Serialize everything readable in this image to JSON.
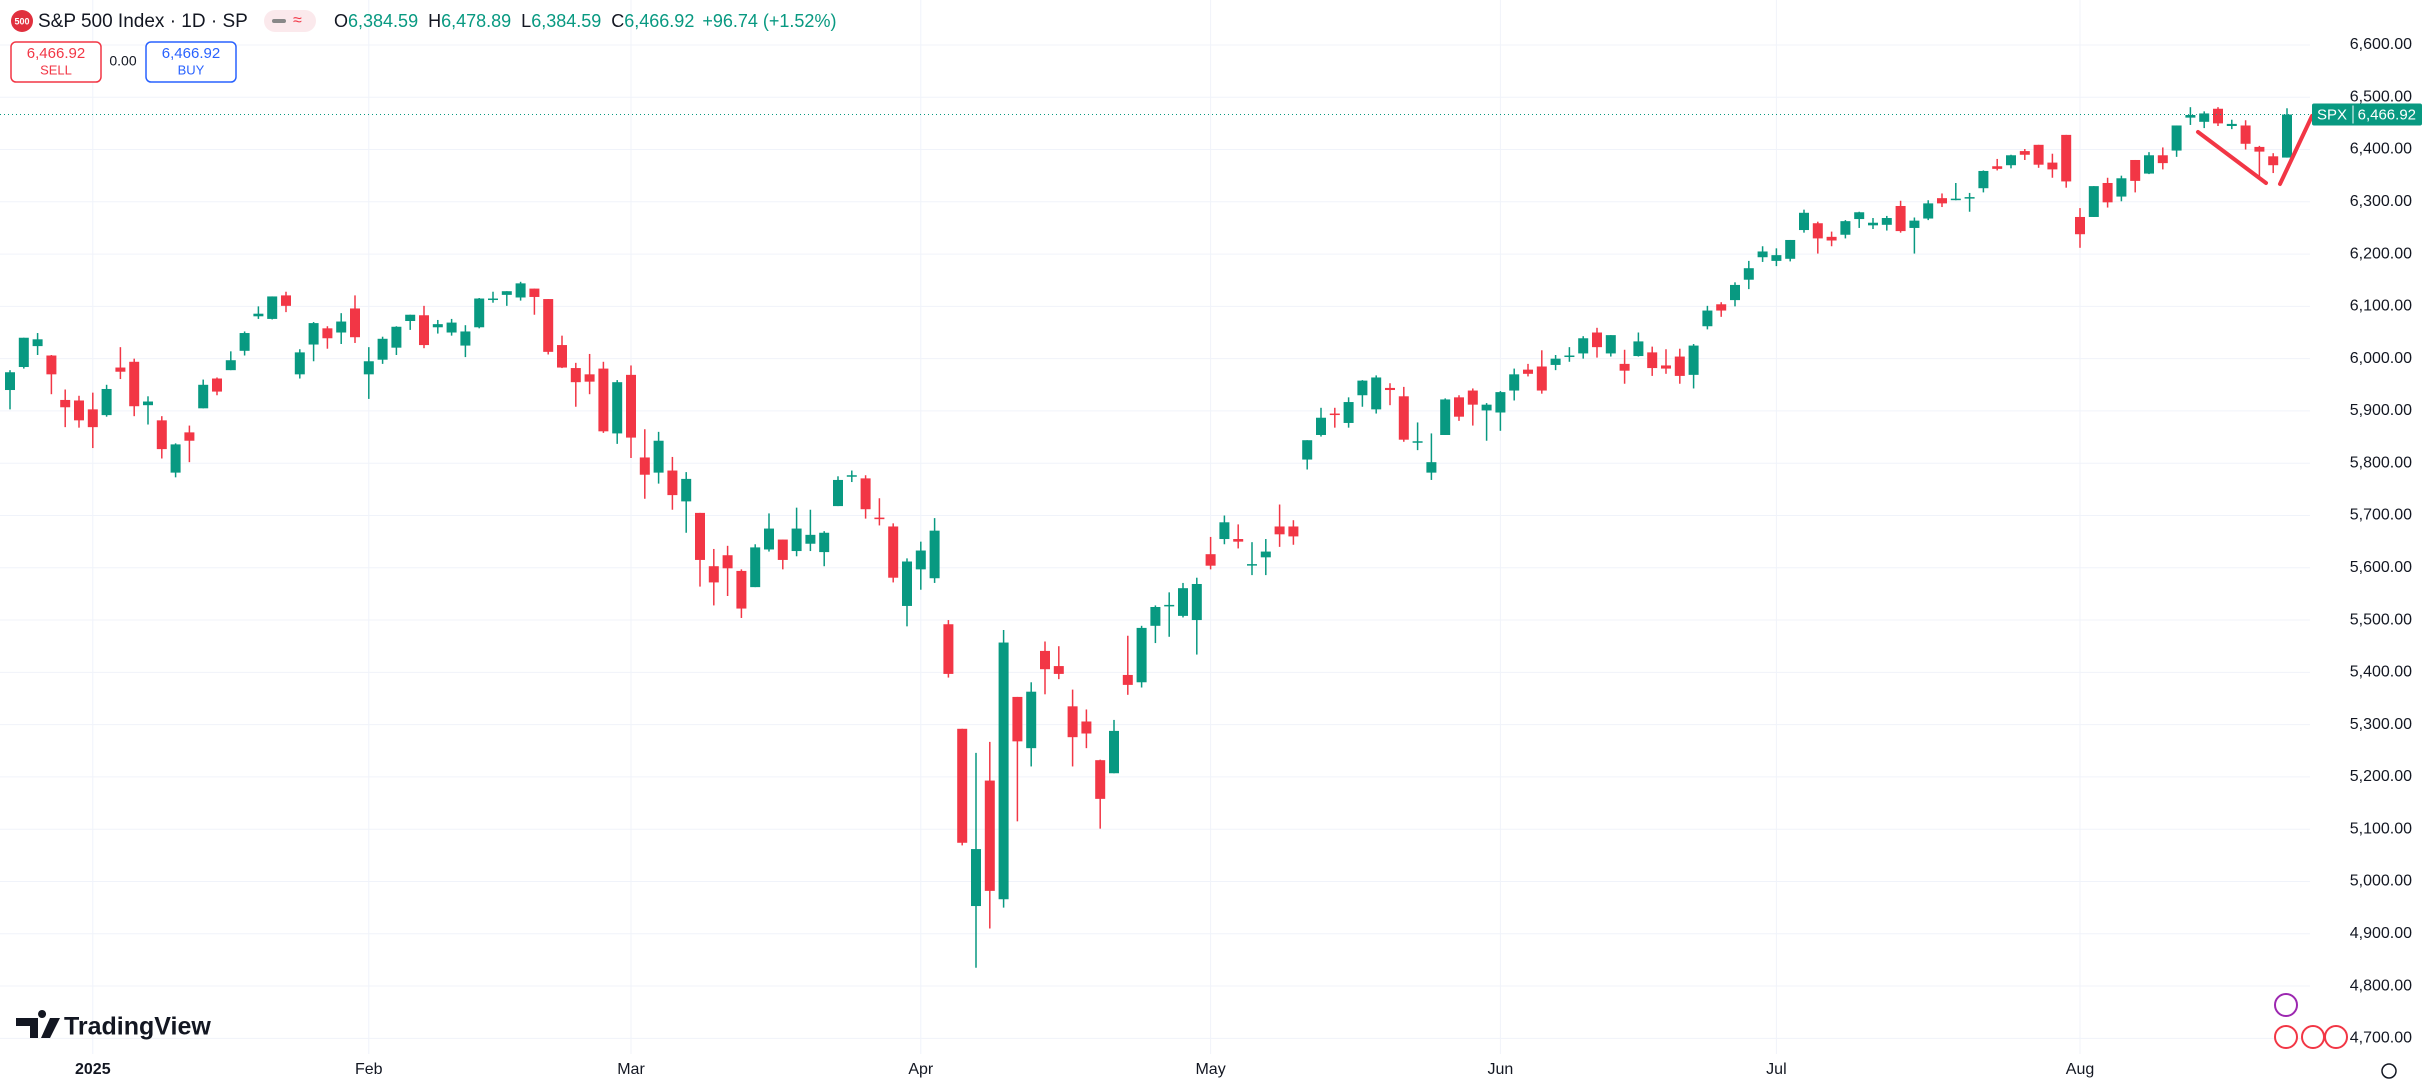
{
  "toolbar": {
    "badge": "500",
    "title": "S&P 500 Index · 1D · SP",
    "ohlc": [
      [
        "O",
        "6,384.59"
      ],
      [
        "H",
        "6,478.89"
      ],
      [
        "L",
        "6,384.59"
      ],
      [
        "C",
        "6,466.92"
      ]
    ],
    "change": "+96.74 (+1.52%)",
    "sell_price": "6,466.92",
    "sell_label": "SELL",
    "spread": "0.00",
    "buy_price": "6,466.92",
    "buy_label": "BUY"
  },
  "logo": "TradingView",
  "chart_data": {
    "type": "candlestick",
    "symbol": "SPX",
    "last_label": "6,466.92",
    "up_color": "#089981",
    "down_color": "#f23645",
    "grid": true,
    "ylim": [
      4670,
      6686
    ],
    "yticks": [
      {
        "value": 4700,
        "label": "4,700.00"
      },
      {
        "value": 4800,
        "label": "4,800.00"
      },
      {
        "value": 4900,
        "label": "4,900.00"
      },
      {
        "value": 5000,
        "label": "5,000.00"
      },
      {
        "value": 5100,
        "label": "5,100.00"
      },
      {
        "value": 5200,
        "label": "5,200.00"
      },
      {
        "value": 5300,
        "label": "5,300.00"
      },
      {
        "value": 5400,
        "label": "5,400.00"
      },
      {
        "value": 5500,
        "label": "5,500.00"
      },
      {
        "value": 5600,
        "label": "5,600.00"
      },
      {
        "value": 5700,
        "label": "5,700.00"
      },
      {
        "value": 5800,
        "label": "5,800.00"
      },
      {
        "value": 5900,
        "label": "5,900.00"
      },
      {
        "value": 6000,
        "label": "6,000.00"
      },
      {
        "value": 6100,
        "label": "6,100.00"
      },
      {
        "value": 6200,
        "label": "6,200.00"
      },
      {
        "value": 6300,
        "label": "6,300.00"
      },
      {
        "value": 6400,
        "label": "6,400.00"
      },
      {
        "value": 6500,
        "label": "6,500.00"
      },
      {
        "value": 6600,
        "label": "6,600.00"
      }
    ],
    "categories": [
      null,
      null,
      null,
      null,
      null,
      null,
      "2025",
      null,
      null,
      null,
      null,
      null,
      null,
      null,
      null,
      null,
      null,
      null,
      null,
      null,
      null,
      null,
      null,
      null,
      null,
      null,
      "Feb",
      null,
      null,
      null,
      null,
      null,
      null,
      null,
      null,
      null,
      null,
      null,
      null,
      null,
      null,
      null,
      null,
      null,
      null,
      "Mar",
      null,
      null,
      null,
      null,
      null,
      null,
      null,
      null,
      null,
      null,
      null,
      null,
      null,
      null,
      null,
      null,
      null,
      null,
      null,
      null,
      "Apr",
      null,
      null,
      null,
      null,
      null,
      null,
      null,
      null,
      null,
      null,
      null,
      null,
      null,
      null,
      null,
      null,
      null,
      null,
      null,
      null,
      "May",
      null,
      null,
      null,
      null,
      null,
      null,
      null,
      null,
      null,
      null,
      null,
      null,
      null,
      null,
      null,
      null,
      null,
      null,
      null,
      null,
      "Jun",
      null,
      null,
      null,
      null,
      null,
      null,
      null,
      null,
      null,
      null,
      null,
      null,
      null,
      null,
      null,
      null,
      null,
      null,
      null,
      "Jul",
      null,
      null,
      null,
      null,
      null,
      null,
      null,
      null,
      null,
      null,
      null,
      null,
      null,
      null,
      null,
      null,
      null,
      null,
      null,
      null,
      null,
      "Aug",
      null,
      null,
      null,
      null,
      null,
      null,
      null,
      null,
      null,
      null,
      null,
      null,
      null,
      null,
      null
    ],
    "open": [
      5940,
      5984,
      6024,
      6006,
      5921,
      5920,
      5903,
      5892,
      5983,
      5994,
      5911,
      5882,
      5782,
      5859,
      5905,
      5962,
      5978,
      6015,
      6081,
      6076,
      6121,
      5970,
      6027,
      6058,
      6050,
      6096,
      5970,
      5998,
      6021,
      6072,
      6083,
      6060,
      6050,
      6025,
      6060,
      6115,
      6122,
      6117,
      6134,
      6114,
      6026,
      5982,
      5970,
      5981,
      5857,
      5969,
      5811,
      5782,
      5786,
      5727,
      5705,
      5603,
      5624,
      5594,
      5563,
      5635,
      5654,
      5632,
      5646,
      5630,
      5718,
      5775,
      5771,
      5696,
      5679,
      5527,
      5597,
      5580,
      5492,
      5292,
      4953,
      5193,
      4966,
      5353,
      5255,
      5441,
      5412,
      5335,
      5306,
      5232,
      5207,
      5395,
      5381,
      5489,
      5529,
      5508,
      5500,
      5626,
      5655,
      5655,
      5606,
      5620,
      5679,
      5679,
      5807,
      5854,
      5895,
      5877,
      5930,
      5903,
      5944,
      5928,
      5841,
      5782,
      5854,
      5926,
      5939,
      5901,
      5897,
      5939,
      5979,
      5985,
      5988,
      6004,
      6010,
      6050,
      6010,
      5990,
      6005,
      6012,
      5987,
      6004,
      5969,
      6062,
      6104,
      6112,
      6151,
      6194,
      6187,
      6191,
      6246,
      6259,
      6233,
      6237,
      6267,
      6255,
      6256,
      6292,
      6250,
      6268,
      6307,
      6304,
      6307,
      6326,
      6368,
      6370,
      6397,
      6409,
      6375,
      6428,
      6271,
      6271,
      6336,
      6310,
      6380,
      6354,
      6389,
      6398,
      6461,
      6453,
      6478,
      6445,
      6446,
      6405,
      6387,
      6384.59
    ],
    "high": [
      5978,
      6040,
      6049,
      6007,
      5941,
      5929,
      5935,
      5950,
      6022,
      6000,
      5928,
      5890,
      5838,
      5872,
      5960,
      5964,
      6014,
      6052,
      6100,
      6119,
      6128,
      6018,
      6070,
      6062,
      6087,
      6121,
      6022,
      6042,
      6062,
      6084,
      6101,
      6074,
      6076,
      6064,
      6116,
      6128,
      6129,
      6147,
      6134,
      6114,
      6044,
      5992,
      6009,
      5994,
      5959,
      5987,
      5865,
      5860,
      5812,
      5783,
      5705,
      5636,
      5642,
      5597,
      5645,
      5704,
      5654,
      5715,
      5711,
      5670,
      5775,
      5786,
      5777,
      5733,
      5685,
      5618,
      5650,
      5695,
      5500,
      5292,
      5246,
      5267,
      5481,
      5353,
      5381,
      5459,
      5450,
      5367,
      5329,
      5233,
      5309,
      5470,
      5489,
      5528,
      5553,
      5571,
      5581,
      5659,
      5700,
      5683,
      5649,
      5655,
      5721,
      5691,
      5844,
      5906,
      5906,
      5926,
      5959,
      5968,
      5953,
      5946,
      5878,
      5857,
      5924,
      5930,
      5943,
      5915,
      5938,
      5981,
      5990,
      6016,
      6007,
      6022,
      6043,
      6059,
      6045,
      6017,
      6050,
      6023,
      6018,
      6019,
      6028,
      6101,
      6108,
      6146,
      6187,
      6215,
      6211,
      6227,
      6285,
      6262,
      6243,
      6265,
      6281,
      6269,
      6273,
      6302,
      6270,
      6303,
      6316,
      6336,
      6317,
      6360,
      6382,
      6390,
      6401,
      6409,
      6392,
      6428,
      6288,
      6330,
      6346,
      6350,
      6380,
      6395,
      6404,
      6446,
      6481,
      6473,
      6481,
      6457,
      6456,
      6407,
      6393,
      6478.89
    ],
    "low": [
      5903,
      5981,
      6007,
      5932,
      5869,
      5868,
      5829,
      5889,
      5961,
      5890,
      5874,
      5809,
      5773,
      5802,
      5905,
      5930,
      5978,
      6006,
      6076,
      6075,
      6089,
      5962,
      5995,
      6019,
      6028,
      6030,
      5923,
      5990,
      6007,
      6055,
      6020,
      6048,
      6044,
      6003,
      6058,
      6107,
      6101,
      6111,
      6084,
      6008,
      5982,
      5908,
      5932,
      5858,
      5837,
      5810,
      5732,
      5761,
      5711,
      5667,
      5564,
      5528,
      5546,
      5504,
      5563,
      5631,
      5597,
      5622,
      5632,
      5603,
      5718,
      5764,
      5694,
      5681,
      5572,
      5488,
      5558,
      5571,
      5390,
      5069,
      4835,
      4910,
      4950,
      5115,
      5220,
      5358,
      5387,
      5220,
      5255,
      5101,
      5207,
      5357,
      5371,
      5456,
      5468,
      5505,
      5434,
      5597,
      5645,
      5637,
      5586,
      5586,
      5640,
      5644,
      5788,
      5851,
      5868,
      5868,
      5908,
      5895,
      5911,
      5841,
      5825,
      5768,
      5854,
      5881,
      5872,
      5843,
      5862,
      5920,
      5966,
      5933,
      5978,
      5994,
      6000,
      6002,
      6004,
      5952,
      6004,
      5967,
      5971,
      5952,
      5943,
      6056,
      6080,
      6100,
      6133,
      6185,
      6177,
      6186,
      6241,
      6201,
      6215,
      6230,
      6250,
      6248,
      6245,
      6241,
      6201,
      6265,
      6290,
      6303,
      6281,
      6318,
      6360,
      6364,
      6380,
      6365,
      6346,
      6327,
      6212,
      6271,
      6289,
      6301,
      6318,
      6353,
      6362,
      6386,
      6447,
      6441,
      6445,
      6439,
      6400,
      6343,
      6355,
      6384.59
    ],
    "close": [
      5974,
      6040,
      6037,
      5970,
      5907,
      5882,
      5869,
      5942,
      5975,
      5909,
      5918,
      5827,
      5836,
      5843,
      5950,
      5937,
      5997,
      6049,
      6086,
      6119,
      6101,
      6012,
      6068,
      6039,
      6071,
      6041,
      5995,
      6038,
      6061,
      6084,
      6026,
      6066,
      6069,
      6052,
      6115,
      6115,
      6129,
      6144,
      6118,
      6013,
      5983,
      5955,
      5956,
      5861,
      5955,
      5849,
      5778,
      5843,
      5739,
      5770,
      5615,
      5572,
      5599,
      5522,
      5639,
      5675,
      5615,
      5675,
      5663,
      5667,
      5768,
      5777,
      5712,
      5693,
      5581,
      5612,
      5633,
      5671,
      5397,
      5074,
      5062,
      4982,
      5457,
      5268,
      5363,
      5406,
      5397,
      5276,
      5283,
      5158,
      5288,
      5376,
      5485,
      5525,
      5529,
      5561,
      5569,
      5604,
      5687,
      5650,
      5607,
      5631,
      5664,
      5660,
      5844,
      5887,
      5893,
      5917,
      5958,
      5964,
      5940,
      5845,
      5842,
      5802,
      5922,
      5889,
      5912,
      5912,
      5936,
      5970,
      5971,
      5939,
      6000,
      6006,
      6039,
      6022,
      6045,
      5977,
      6033,
      5982,
      5981,
      5967,
      6025,
      6092,
      6092,
      6141,
      6173,
      6205,
      6198,
      6227,
      6279,
      6230,
      6226,
      6263,
      6280,
      6260,
      6269,
      6244,
      6264,
      6297,
      6297,
      6306,
      6309,
      6359,
      6363,
      6389,
      6390,
      6371,
      6362,
      6339,
      6238,
      6330,
      6299,
      6345,
      6340,
      6389,
      6374,
      6446,
      6466,
      6469,
      6450,
      6449,
      6411,
      6396,
      6370,
      6466.92
    ]
  }
}
